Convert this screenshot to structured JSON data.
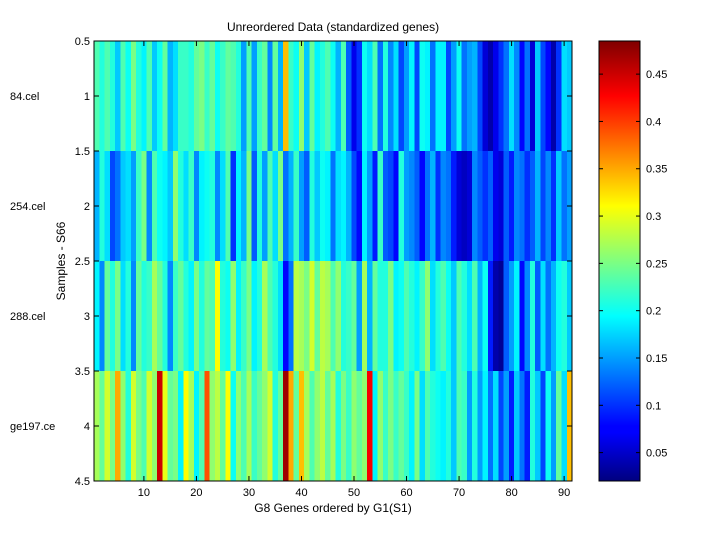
{
  "chart_data": [
    {
      "type": "heatmap",
      "title": "Unreordered Data (standardized genes)",
      "xlabel": "G8 Genes ordered by G1(S1)",
      "ylabel": "Samples - S66",
      "xlim": [
        0.5,
        91.5
      ],
      "ylim": [
        0.5,
        4.5
      ],
      "y_direction": "reverse",
      "x_ticks": [
        10,
        20,
        30,
        40,
        50,
        60,
        70,
        80,
        90
      ],
      "y_ticks": [
        0.5,
        1,
        1.5,
        2,
        2.5,
        3,
        3.5,
        4,
        4.5
      ],
      "y_tick_labels": [
        "0.5",
        "1",
        "1.5",
        "2",
        "2.5",
        "3",
        "3.5",
        "4",
        "4.5"
      ],
      "row_labels": [
        "84.cel",
        "254.cel",
        "288.cel",
        "ge197.ce"
      ],
      "n_columns": 91,
      "colormap": "jet",
      "clim": [
        0.02,
        0.485
      ],
      "values": [
        [
          0.23,
          0.21,
          0.23,
          0.21,
          0.17,
          0.23,
          0.2,
          0.25,
          0.21,
          0.19,
          0.23,
          0.17,
          0.2,
          0.24,
          0.16,
          0.18,
          0.22,
          0.22,
          0.21,
          0.24,
          0.25,
          0.22,
          0.24,
          0.2,
          0.22,
          0.24,
          0.23,
          0.21,
          0.15,
          0.23,
          0.15,
          0.22,
          0.24,
          0.14,
          0.24,
          0.16,
          0.34,
          0.22,
          0.2,
          0.26,
          0.17,
          0.24,
          0.19,
          0.21,
          0.23,
          0.2,
          0.16,
          0.23,
          0.12,
          0.07,
          0.1,
          0.2,
          0.18,
          0.23,
          0.13,
          0.21,
          0.14,
          0.18,
          0.11,
          0.15,
          0.19,
          0.11,
          0.2,
          0.19,
          0.13,
          0.19,
          0.19,
          0.11,
          0.15,
          0.2,
          0.13,
          0.15,
          0.16,
          0.11,
          0.06,
          0.04,
          0.07,
          0.1,
          0.13,
          0.18,
          0.14,
          0.08,
          0.13,
          0.06,
          0.17,
          0.11,
          0.08,
          0.04,
          0.1,
          0.18,
          0.17
        ],
        [
          0.16,
          0.21,
          0.18,
          0.11,
          0.13,
          0.17,
          0.18,
          0.15,
          0.22,
          0.25,
          0.14,
          0.23,
          0.2,
          0.19,
          0.17,
          0.26,
          0.21,
          0.18,
          0.22,
          0.14,
          0.19,
          0.2,
          0.21,
          0.14,
          0.18,
          0.23,
          0.1,
          0.19,
          0.16,
          0.25,
          0.12,
          0.21,
          0.15,
          0.23,
          0.18,
          0.25,
          0.13,
          0.16,
          0.22,
          0.15,
          0.12,
          0.21,
          0.17,
          0.2,
          0.19,
          0.13,
          0.18,
          0.19,
          0.16,
          0.11,
          0.08,
          0.19,
          0.15,
          0.09,
          0.22,
          0.12,
          0.11,
          0.08,
          0.21,
          0.15,
          0.14,
          0.12,
          0.08,
          0.13,
          0.16,
          0.1,
          0.14,
          0.13,
          0.09,
          0.06,
          0.05,
          0.06,
          0.14,
          0.12,
          0.1,
          0.12,
          0.07,
          0.06,
          0.12,
          0.09,
          0.14,
          0.13,
          0.1,
          0.12,
          0.16,
          0.11,
          0.14,
          0.1,
          0.17,
          0.13,
          0.15
        ],
        [
          0.19,
          0.14,
          0.24,
          0.21,
          0.25,
          0.18,
          0.21,
          0.14,
          0.24,
          0.21,
          0.22,
          0.27,
          0.24,
          0.21,
          0.14,
          0.22,
          0.24,
          0.21,
          0.19,
          0.25,
          0.21,
          0.24,
          0.23,
          0.31,
          0.21,
          0.2,
          0.26,
          0.19,
          0.22,
          0.25,
          0.19,
          0.21,
          0.27,
          0.23,
          0.21,
          0.18,
          0.08,
          0.13,
          0.28,
          0.27,
          0.25,
          0.29,
          0.24,
          0.28,
          0.27,
          0.23,
          0.26,
          0.21,
          0.22,
          0.24,
          0.15,
          0.27,
          0.16,
          0.24,
          0.21,
          0.21,
          0.25,
          0.19,
          0.2,
          0.23,
          0.21,
          0.19,
          0.22,
          0.26,
          0.18,
          0.21,
          0.23,
          0.2,
          0.17,
          0.23,
          0.21,
          0.18,
          0.23,
          0.16,
          0.2,
          0.09,
          0.04,
          0.03,
          0.12,
          0.15,
          0.19,
          0.08,
          0.14,
          0.21,
          0.12,
          0.18,
          0.13,
          0.16,
          0.2,
          0.21,
          0.17
        ],
        [
          0.27,
          0.24,
          0.29,
          0.25,
          0.35,
          0.26,
          0.21,
          0.29,
          0.25,
          0.23,
          0.29,
          0.26,
          0.45,
          0.3,
          0.24,
          0.25,
          0.19,
          0.31,
          0.27,
          0.19,
          0.23,
          0.39,
          0.26,
          0.28,
          0.24,
          0.31,
          0.2,
          0.26,
          0.23,
          0.27,
          0.22,
          0.24,
          0.26,
          0.29,
          0.21,
          0.24,
          0.47,
          0.35,
          0.24,
          0.34,
          0.27,
          0.23,
          0.26,
          0.28,
          0.24,
          0.27,
          0.21,
          0.25,
          0.22,
          0.26,
          0.24,
          0.26,
          0.43,
          0.19,
          0.26,
          0.22,
          0.25,
          0.22,
          0.24,
          0.22,
          0.19,
          0.25,
          0.18,
          0.23,
          0.21,
          0.2,
          0.19,
          0.21,
          0.17,
          0.23,
          0.22,
          0.15,
          0.21,
          0.15,
          0.19,
          0.13,
          0.18,
          0.11,
          0.15,
          0.09,
          0.17,
          0.13,
          0.09,
          0.21,
          0.17,
          0.11,
          0.2,
          0.15,
          0.24,
          0.18,
          0.34
        ]
      ],
      "colorbar": {
        "ticks": [
          0.05,
          0.1,
          0.15,
          0.2,
          0.25,
          0.3,
          0.35,
          0.4,
          0.45
        ],
        "tick_labels": [
          "0.05",
          "0.1",
          "0.15",
          "0.2",
          "0.25",
          "0.3",
          "0.35",
          "0.4",
          "0.45"
        ]
      }
    }
  ]
}
